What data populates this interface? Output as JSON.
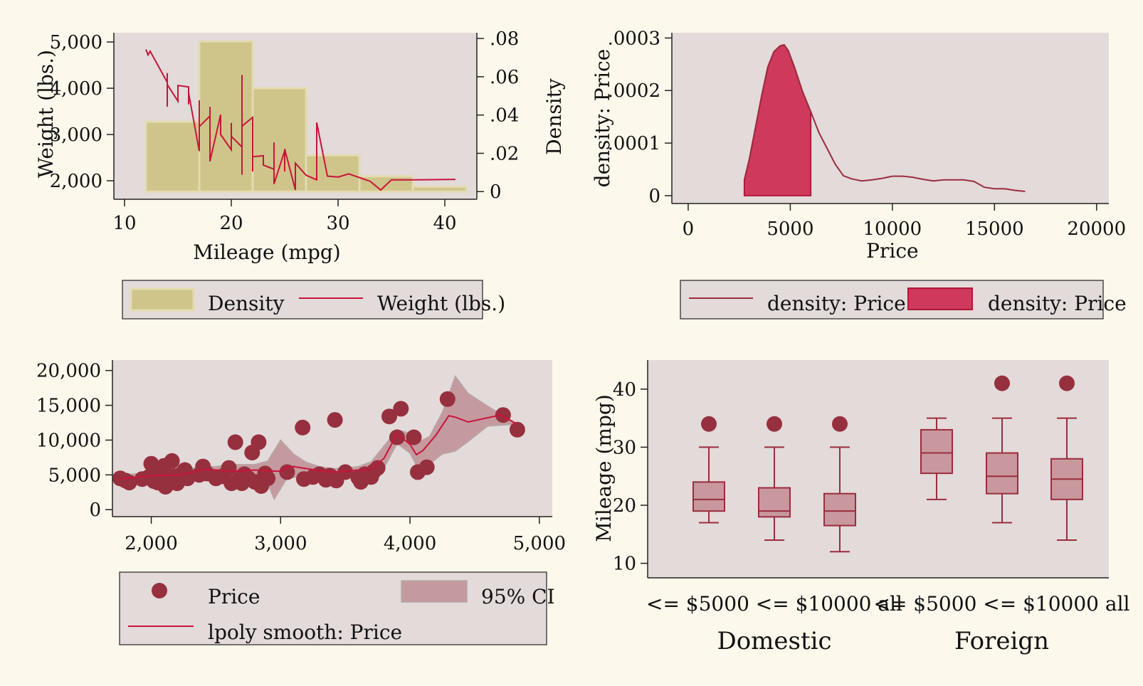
{
  "colors": {
    "background": "#fdf8ec",
    "plot_bg": "#e3dada",
    "legend_bg": "#e3dada",
    "hist_fill": "#cfc58a",
    "hist_stroke": "#e3dbb0",
    "line_red": "#c8143c",
    "kde_line": "#9b2d3d",
    "kde_fill": "#cf3a5c",
    "scatter": "#97303e",
    "ci_fill": "#c49a9e",
    "box_fill": "#c8989e",
    "box_line": "#9b2d3d"
  },
  "chart_data": [
    {
      "id": "p1",
      "type": "bar",
      "subtype": "histogram with overlaid line, dual y-axis",
      "xlabel": "Mileage (mpg)",
      "ylabel": "Weight (lbs.)",
      "ylabel_right": "Density",
      "xlim": [
        9,
        43
      ],
      "x_ticks": [
        10,
        20,
        30,
        40
      ],
      "x_tick_labels": [
        "10",
        "20",
        "30",
        "40"
      ],
      "ylim": [
        1600,
        5200
      ],
      "y_ticks": [
        2000,
        3000,
        4000,
        5000
      ],
      "y_tick_labels": [
        "2,000",
        "3,000",
        "4,000",
        "5,000"
      ],
      "ylim_right": [
        -0.004,
        0.083
      ],
      "y2_ticks": [
        0,
        0.02,
        0.04,
        0.06,
        0.08
      ],
      "y2_tick_labels": [
        "0",
        ".02",
        ".04",
        ".06",
        ".08"
      ],
      "histogram": {
        "name": "Density",
        "bins": [
          {
            "x0": 12,
            "x1": 17,
            "density": 0.0365
          },
          {
            "x0": 17,
            "x1": 22,
            "density": 0.0785
          },
          {
            "x0": 22,
            "x1": 27,
            "density": 0.054
          },
          {
            "x0": 27,
            "x1": 32,
            "density": 0.019
          },
          {
            "x0": 32,
            "x1": 37,
            "density": 0.008
          },
          {
            "x0": 37,
            "x1": 42,
            "density": 0.0025
          }
        ]
      },
      "line": {
        "name": "Weight (lbs.)",
        "points": [
          [
            12,
            4840
          ],
          [
            12.2,
            4720
          ],
          [
            12.4,
            4800
          ],
          [
            14,
            4130
          ],
          [
            14,
            4330
          ],
          [
            14,
            3600
          ],
          [
            14,
            4080
          ],
          [
            15,
            3720
          ],
          [
            15,
            4060
          ],
          [
            16,
            4030
          ],
          [
            16,
            3650
          ],
          [
            16,
            3900
          ],
          [
            17,
            2640
          ],
          [
            17,
            3740
          ],
          [
            17,
            3170
          ],
          [
            18,
            3400
          ],
          [
            18,
            2750
          ],
          [
            18,
            3600
          ],
          [
            18,
            2420
          ],
          [
            19,
            3430
          ],
          [
            19,
            3210
          ],
          [
            19,
            3000
          ],
          [
            20,
            2670
          ],
          [
            20,
            3250
          ],
          [
            20,
            2960
          ],
          [
            21,
            2730
          ],
          [
            21,
            4290
          ],
          [
            21,
            2130
          ],
          [
            21,
            3180
          ],
          [
            22,
            3370
          ],
          [
            22,
            2200
          ],
          [
            22,
            2860
          ],
          [
            22,
            2520
          ],
          [
            23,
            2540
          ],
          [
            23,
            2340
          ],
          [
            24,
            2250
          ],
          [
            24,
            2830
          ],
          [
            24,
            1930
          ],
          [
            25,
            2650
          ],
          [
            25,
            2200
          ],
          [
            25,
            2690
          ],
          [
            26,
            1800
          ],
          [
            26,
            2380
          ],
          [
            27,
            2120
          ],
          [
            28,
            2020
          ],
          [
            28,
            3260
          ],
          [
            29,
            2100
          ],
          [
            30,
            2080
          ],
          [
            31,
            2150
          ],
          [
            33,
            1990
          ],
          [
            34,
            1800
          ],
          [
            35,
            2020
          ],
          [
            37,
            2020
          ],
          [
            41,
            2030
          ]
        ]
      }
    },
    {
      "id": "p2",
      "type": "area",
      "subtype": "kernel density with shaded region",
      "xlabel": "Price",
      "ylabel": "density: Price",
      "xlim": [
        -800,
        20600
      ],
      "x_ticks": [
        0,
        5000,
        10000,
        15000,
        20000
      ],
      "x_tick_labels": [
        "0",
        "5000",
        "10000",
        "15000",
        "20000"
      ],
      "ylim": [
        -1.5e-05,
        0.00031
      ],
      "y_ticks": [
        0,
        0.0001,
        0.0002,
        0.0003
      ],
      "y_tick_labels": [
        "0",
        ".0001",
        ".0002",
        ".0003"
      ],
      "series": [
        {
          "name": "density: Price",
          "style": "line"
        },
        {
          "name": "density: Price",
          "style": "shaded",
          "x_range": [
            2750,
            6000
          ]
        }
      ],
      "density": [
        [
          2750,
          3e-05
        ],
        [
          3000,
          7e-05
        ],
        [
          3300,
          0.00013
        ],
        [
          3600,
          0.00019
        ],
        [
          3900,
          0.000245
        ],
        [
          4200,
          0.000274
        ],
        [
          4500,
          0.000285
        ],
        [
          4700,
          0.000287
        ],
        [
          4900,
          0.000276
        ],
        [
          5200,
          0.000245
        ],
        [
          5600,
          0.000198
        ],
        [
          6000,
          0.00016
        ],
        [
          6400,
          0.00012
        ],
        [
          6800,
          9e-05
        ],
        [
          7200,
          6e-05
        ],
        [
          7600,
          3.8e-05
        ],
        [
          8000,
          3.2e-05
        ],
        [
          8500,
          2.8e-05
        ],
        [
          9000,
          3e-05
        ],
        [
          9500,
          3.3e-05
        ],
        [
          10000,
          3.7e-05
        ],
        [
          10500,
          3.7e-05
        ],
        [
          11000,
          3.5e-05
        ],
        [
          11500,
          3.1e-05
        ],
        [
          12000,
          2.8e-05
        ],
        [
          12500,
          3e-05
        ],
        [
          13000,
          3e-05
        ],
        [
          13500,
          3e-05
        ],
        [
          14000,
          2.7e-05
        ],
        [
          14500,
          1.6e-05
        ],
        [
          15000,
          1.3e-05
        ],
        [
          15500,
          1.3e-05
        ],
        [
          16000,
          1e-05
        ],
        [
          16500,
          8e-06
        ]
      ]
    },
    {
      "id": "p3",
      "type": "scatter",
      "subtype": "scatter with local polynomial smooth and 95% CI",
      "xlabel": "",
      "ylabel": "",
      "xlim": [
        1700,
        5100
      ],
      "x_ticks": [
        2000,
        3000,
        4000,
        5000
      ],
      "x_tick_labels": [
        "2,000",
        "3,000",
        "4,000",
        "5,000"
      ],
      "ylim": [
        -1000,
        21500
      ],
      "y_ticks": [
        0,
        5000,
        10000,
        15000,
        20000
      ],
      "y_tick_labels": [
        "0",
        "5,000",
        "10,000",
        "15,000",
        "20,000"
      ],
      "series": [
        {
          "name": "Price",
          "style": "points"
        },
        {
          "name": "lpoly smooth: Price",
          "style": "line"
        },
        {
          "name": "95% CI",
          "style": "band"
        }
      ],
      "points": [
        [
          1760,
          4500
        ],
        [
          1800,
          4200
        ],
        [
          1830,
          3900
        ],
        [
          1930,
          4400
        ],
        [
          1980,
          4700
        ],
        [
          2000,
          6600
        ],
        [
          2020,
          4100
        ],
        [
          2050,
          3900
        ],
        [
          2070,
          5000
        ],
        [
          2100,
          6300
        ],
        [
          2110,
          3300
        ],
        [
          2130,
          3700
        ],
        [
          2140,
          4400
        ],
        [
          2160,
          7000
        ],
        [
          2180,
          4800
        ],
        [
          2200,
          3800
        ],
        [
          2230,
          5100
        ],
        [
          2260,
          5700
        ],
        [
          2280,
          4500
        ],
        [
          2370,
          5000
        ],
        [
          2400,
          6200
        ],
        [
          2430,
          5200
        ],
        [
          2500,
          4500
        ],
        [
          2550,
          4800
        ],
        [
          2600,
          6000
        ],
        [
          2620,
          3800
        ],
        [
          2650,
          9700
        ],
        [
          2680,
          4400
        ],
        [
          2700,
          3800
        ],
        [
          2720,
          5100
        ],
        [
          2750,
          4500
        ],
        [
          2780,
          8200
        ],
        [
          2800,
          4000
        ],
        [
          2830,
          9700
        ],
        [
          2850,
          3400
        ],
        [
          2880,
          5200
        ],
        [
          2900,
          4500
        ],
        [
          3050,
          5400
        ],
        [
          3170,
          11800
        ],
        [
          3180,
          4400
        ],
        [
          3250,
          4700
        ],
        [
          3300,
          5100
        ],
        [
          3350,
          4300
        ],
        [
          3380,
          4900
        ],
        [
          3420,
          12900
        ],
        [
          3430,
          4200
        ],
        [
          3500,
          5400
        ],
        [
          3600,
          4600
        ],
        [
          3620,
          4000
        ],
        [
          3650,
          5100
        ],
        [
          3700,
          4700
        ],
        [
          3720,
          5500
        ],
        [
          3750,
          6000
        ],
        [
          3840,
          13400
        ],
        [
          3900,
          10400
        ],
        [
          3930,
          14500
        ],
        [
          4030,
          10400
        ],
        [
          4060,
          5400
        ],
        [
          4130,
          6100
        ],
        [
          4290,
          15900
        ],
        [
          4720,
          13600
        ],
        [
          4830,
          11500
        ]
      ],
      "smooth": [
        [
          1760,
          4400
        ],
        [
          1900,
          4700
        ],
        [
          2000,
          4900
        ],
        [
          2100,
          4900
        ],
        [
          2200,
          5000
        ],
        [
          2300,
          5300
        ],
        [
          2400,
          5800
        ],
        [
          2500,
          5700
        ],
        [
          2600,
          5500
        ],
        [
          2700,
          5600
        ],
        [
          2800,
          5700
        ],
        [
          2900,
          5600
        ],
        [
          3000,
          5500
        ],
        [
          3050,
          6100
        ],
        [
          3100,
          6200
        ],
        [
          3200,
          5900
        ],
        [
          3300,
          5600
        ],
        [
          3400,
          5400
        ],
        [
          3500,
          5500
        ],
        [
          3600,
          5700
        ],
        [
          3700,
          5800
        ],
        [
          3800,
          7400
        ],
        [
          3900,
          10900
        ],
        [
          4000,
          9400
        ],
        [
          4050,
          7900
        ],
        [
          4100,
          8500
        ],
        [
          4200,
          10700
        ],
        [
          4300,
          13500
        ],
        [
          4350,
          13300
        ],
        [
          4450,
          12600
        ],
        [
          4700,
          13600
        ],
        [
          4830,
          12300
        ]
      ],
      "ci_upper": [
        [
          1760,
          5000
        ],
        [
          1900,
          5200
        ],
        [
          2000,
          5400
        ],
        [
          2100,
          5400
        ],
        [
          2200,
          5400
        ],
        [
          2300,
          5900
        ],
        [
          2400,
          6200
        ],
        [
          2500,
          6200
        ],
        [
          2600,
          6500
        ],
        [
          2700,
          6500
        ],
        [
          2800,
          6500
        ],
        [
          2900,
          7000
        ],
        [
          3000,
          10000
        ],
        [
          3100,
          8000
        ],
        [
          3200,
          6800
        ],
        [
          3300,
          6200
        ],
        [
          3400,
          5900
        ],
        [
          3500,
          6000
        ],
        [
          3600,
          6200
        ],
        [
          3700,
          6900
        ],
        [
          3800,
          9200
        ],
        [
          3900,
          11500
        ],
        [
          4000,
          11000
        ],
        [
          4050,
          9600
        ],
        [
          4150,
          10500
        ],
        [
          4250,
          14000
        ],
        [
          4350,
          19200
        ],
        [
          4450,
          16700
        ],
        [
          4600,
          14900
        ],
        [
          4830,
          12300
        ]
      ],
      "ci_lower": [
        [
          1760,
          3800
        ],
        [
          1900,
          4200
        ],
        [
          2000,
          4400
        ],
        [
          2100,
          4400
        ],
        [
          2200,
          4500
        ],
        [
          2300,
          4700
        ],
        [
          2400,
          5100
        ],
        [
          2500,
          5100
        ],
        [
          2600,
          4500
        ],
        [
          2700,
          4500
        ],
        [
          2800,
          4500
        ],
        [
          2900,
          3800
        ],
        [
          2950,
          1500
        ],
        [
          3050,
          4500
        ],
        [
          3100,
          4600
        ],
        [
          3200,
          5000
        ],
        [
          3300,
          5000
        ],
        [
          3400,
          4900
        ],
        [
          3500,
          5000
        ],
        [
          3600,
          5100
        ],
        [
          3700,
          5400
        ],
        [
          3800,
          6000
        ],
        [
          3900,
          9500
        ],
        [
          4000,
          8100
        ],
        [
          4050,
          6300
        ],
        [
          4150,
          6500
        ],
        [
          4250,
          8000
        ],
        [
          4350,
          8400
        ],
        [
          4450,
          9800
        ],
        [
          4600,
          12000
        ],
        [
          4830,
          12300
        ]
      ]
    },
    {
      "id": "p4",
      "type": "box",
      "subtype": "grouped box plot",
      "ylabel": "Mileage (mpg)",
      "ylim": [
        7.5,
        45
      ],
      "y_ticks": [
        10,
        20,
        30,
        40
      ],
      "y_tick_labels": [
        "10",
        "20",
        "30",
        "40"
      ],
      "groups": [
        {
          "name": "Domestic",
          "category_label": "<= $5000 <= $10000 all",
          "boxes": [
            {
              "label": "<= $5000",
              "whisker_low": 17,
              "q1": 19,
              "median": 21,
              "q3": 24,
              "whisker_high": 30,
              "outliers": [
                34
              ]
            },
            {
              "label": "<= $10000",
              "whisker_low": 14,
              "q1": 18,
              "median": 19,
              "q3": 23,
              "whisker_high": 30,
              "outliers": [
                34
              ]
            },
            {
              "label": "all",
              "whisker_low": 12,
              "q1": 16.5,
              "median": 19,
              "q3": 22,
              "whisker_high": 30,
              "outliers": [
                34
              ]
            }
          ]
        },
        {
          "name": "Foreign",
          "category_label": "<= $5000 <= $10000 all",
          "boxes": [
            {
              "label": "<= $5000",
              "whisker_low": 21,
              "q1": 25.5,
              "median": 29,
              "q3": 33,
              "whisker_high": 35,
              "outliers": []
            },
            {
              "label": "<= $10000",
              "whisker_low": 17,
              "q1": 22,
              "median": 25,
              "q3": 29,
              "whisker_high": 35,
              "outliers": [
                41
              ]
            },
            {
              "label": "all",
              "whisker_low": 14,
              "q1": 21,
              "median": 24.5,
              "q3": 28,
              "whisker_high": 35,
              "outliers": [
                41
              ]
            }
          ]
        }
      ]
    }
  ],
  "legends": {
    "p1": [
      "Density",
      "Weight (lbs.)"
    ],
    "p2": [
      "density: Price",
      "density: Price"
    ],
    "p3": [
      "Price",
      "95% CI",
      "lpoly smooth: Price"
    ]
  }
}
